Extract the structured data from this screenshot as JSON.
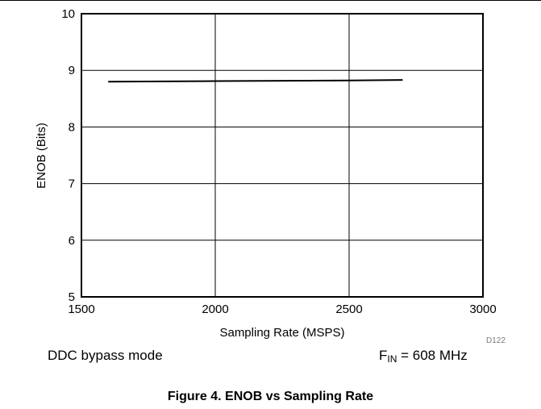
{
  "chart_data": {
    "type": "line",
    "xlabel": "Sampling Rate (MSPS)",
    "ylabel": "ENOB (Bits)",
    "xlim": [
      1500,
      3000
    ],
    "ylim": [
      5,
      10
    ],
    "xticks": [
      "1500",
      "2000",
      "2500",
      "3000"
    ],
    "yticks": [
      "5",
      "6",
      "7",
      "8",
      "9",
      "10"
    ],
    "grid": true,
    "series": [
      {
        "x": [
          1600,
          2000,
          2500,
          2700
        ],
        "values": [
          8.8,
          8.81,
          8.82,
          8.83
        ]
      }
    ],
    "line_color": "#000000"
  },
  "figure_code": "D122",
  "condition_left": "DDC bypass mode",
  "condition_right_prefix": "F",
  "condition_right_sub": "IN",
  "condition_right_suffix": " = 608 MHz",
  "caption": "Figure 4. ENOB vs Sampling Rate"
}
